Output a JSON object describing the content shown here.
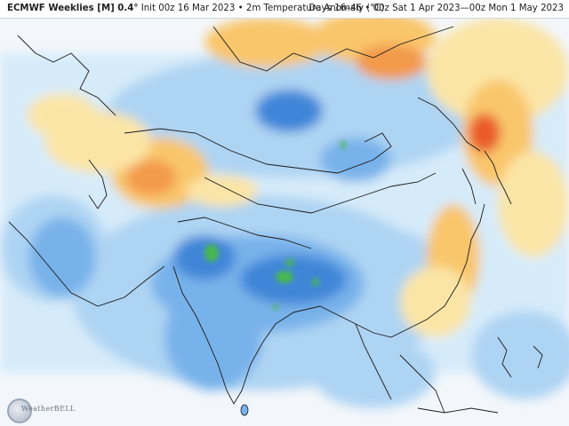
{
  "header": {
    "model_label": "ECMWF Weeklies [M] 0.4°",
    "init_label": "Init 00z 16 Mar 2023",
    "separator": "•",
    "variable_label": "2m Temperature Anomaly (°C)",
    "valid_label": "Days 16–46 • 00z Sat 1 Apr 2023—00z Mon 1 May 2023"
  },
  "map": {
    "region": "Asia",
    "ocean_color": "#f3f7fb",
    "palette": {
      "strong_cold": "#3f86d8",
      "cold": "#78b2ea",
      "cool": "#aed4f3",
      "slight_cool": "#d6ebfa",
      "slight_warm": "#fbe5a6",
      "warm": "#f9c66c",
      "hot": "#f39a4c",
      "very_hot": "#ea5a2a",
      "green_extreme": "#48b84e"
    },
    "border_color": "#1a1a1a"
  },
  "logo": {
    "name": "WeatherBELL",
    "icon": "weatherbell-logo"
  }
}
